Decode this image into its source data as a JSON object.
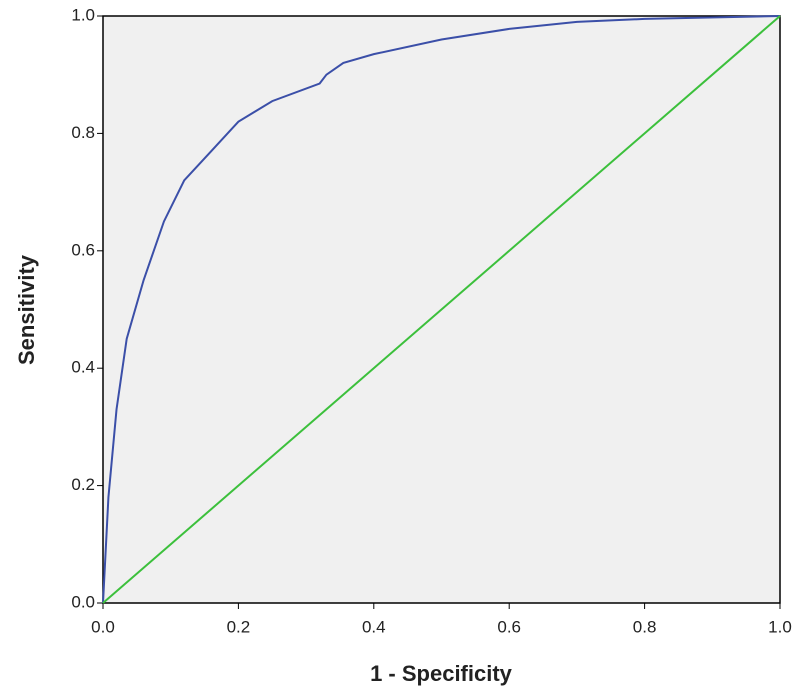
{
  "chart_data": {
    "type": "line",
    "x_label": "1 - Specificity",
    "y_label": "Sensitivity",
    "xlim": [
      0,
      1
    ],
    "ylim": [
      0,
      1
    ],
    "xticks": [
      {
        "value": 0,
        "label": "0.0"
      },
      0.2,
      0.4,
      0.6,
      0.8,
      {
        "value": 1,
        "label": "1.0"
      }
    ],
    "yticks": [
      {
        "value": 0,
        "label": "0.0"
      },
      0.2,
      0.4,
      0.6,
      0.8,
      {
        "value": 1,
        "label": "1.0"
      }
    ],
    "grid": false,
    "series": [
      {
        "color": "#3b4fa8",
        "x": [
          0,
          0.008,
          0.02,
          0.035,
          0.06,
          0.09,
          0.12,
          0.16,
          0.2,
          0.25,
          0.32,
          0.33,
          0.355,
          0.4,
          0.5,
          0.6,
          0.7,
          0.8,
          1
        ],
        "values": [
          0,
          0.18,
          0.33,
          0.45,
          0.55,
          0.65,
          0.72,
          0.77,
          0.82,
          0.855,
          0.885,
          0.9,
          0.92,
          0.935,
          0.96,
          0.978,
          0.99,
          0.995,
          1
        ]
      },
      {
        "color": "#3cc03c",
        "x": [
          0,
          1
        ],
        "values": [
          0,
          1
        ]
      }
    ]
  }
}
